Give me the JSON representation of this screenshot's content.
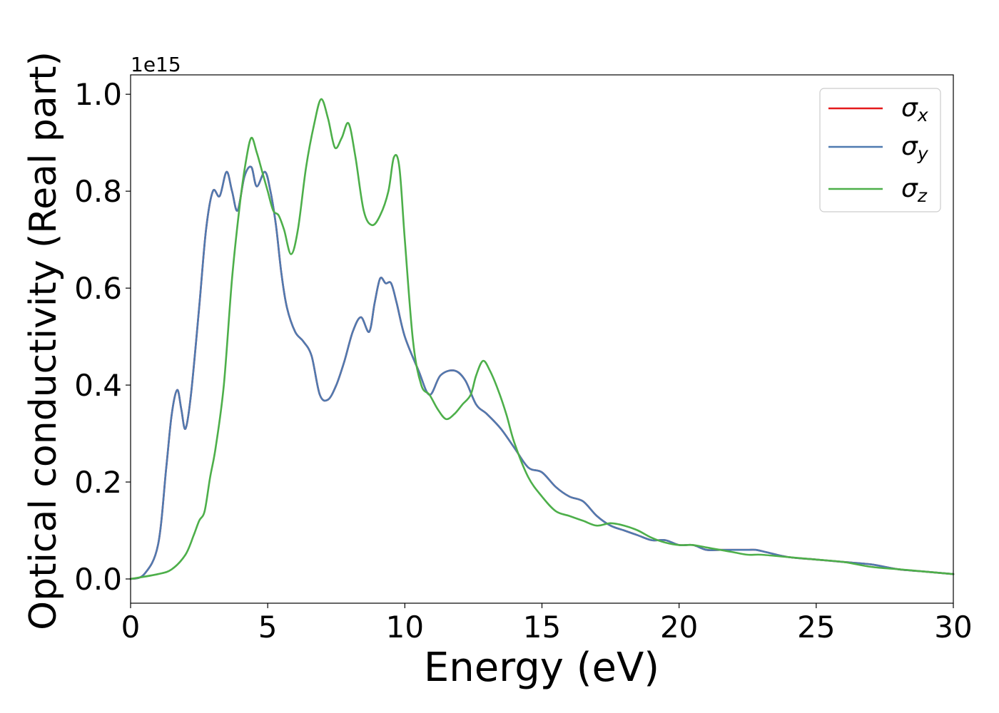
{
  "chart_data": {
    "type": "line",
    "xlabel": "Energy (eV)",
    "ylabel": "Optical conductivity (Real part)",
    "offset_text": "1e15",
    "xlim": [
      0,
      30
    ],
    "ylim": [
      -0.05,
      1.04
    ],
    "x_ticks": [
      0,
      5,
      10,
      15,
      20,
      25,
      30
    ],
    "x_tick_labels": [
      "0",
      "5",
      "10",
      "15",
      "20",
      "25",
      "30"
    ],
    "y_ticks": [
      0.0,
      0.2,
      0.4,
      0.6,
      0.8,
      1.0
    ],
    "y_tick_labels": [
      "0.0",
      "0.2",
      "0.4",
      "0.6",
      "0.8",
      "1.0"
    ],
    "grid": false,
    "legend_position": "top-right",
    "series": [
      {
        "name": "σx",
        "symbol": "σ",
        "subscript": "x",
        "color": "#e41a1c",
        "x": [
          0,
          0.5,
          1.0,
          1.3,
          1.5,
          1.7,
          1.85,
          2.0,
          2.2,
          2.5,
          2.75,
          3.0,
          3.25,
          3.5,
          3.7,
          3.9,
          4.15,
          4.4,
          4.6,
          4.9,
          5.1,
          5.3,
          5.5,
          5.7,
          6.0,
          6.3,
          6.6,
          6.9,
          7.2,
          7.5,
          7.8,
          8.1,
          8.4,
          8.7,
          8.9,
          9.1,
          9.3,
          9.5,
          9.7,
          10.0,
          10.5,
          10.9,
          11.3,
          11.8,
          12.2,
          12.6,
          13.0,
          13.5,
          14.0,
          14.5,
          15.0,
          15.5,
          16.0,
          16.5,
          17.0,
          17.5,
          18.0,
          18.5,
          19.0,
          19.5,
          20.0,
          20.5,
          21.0,
          21.5,
          22.0,
          22.5,
          22.8,
          23.2,
          24.0,
          25.0,
          26.0,
          27.0,
          28.0,
          29.0,
          30.0
        ],
        "values": [
          0.0,
          0.01,
          0.07,
          0.23,
          0.34,
          0.39,
          0.35,
          0.31,
          0.38,
          0.56,
          0.72,
          0.8,
          0.79,
          0.84,
          0.8,
          0.76,
          0.83,
          0.85,
          0.81,
          0.84,
          0.8,
          0.73,
          0.63,
          0.56,
          0.51,
          0.49,
          0.46,
          0.38,
          0.37,
          0.4,
          0.45,
          0.51,
          0.54,
          0.51,
          0.57,
          0.62,
          0.61,
          0.61,
          0.57,
          0.5,
          0.43,
          0.38,
          0.42,
          0.43,
          0.41,
          0.36,
          0.34,
          0.31,
          0.27,
          0.23,
          0.22,
          0.19,
          0.17,
          0.16,
          0.13,
          0.11,
          0.1,
          0.09,
          0.08,
          0.08,
          0.07,
          0.07,
          0.06,
          0.06,
          0.06,
          0.06,
          0.06,
          0.055,
          0.045,
          0.04,
          0.035,
          0.03,
          0.02,
          0.015,
          0.01
        ]
      },
      {
        "name": "σy",
        "symbol": "σ",
        "subscript": "y",
        "color": "#4f7ab0",
        "x": [
          0,
          0.5,
          1.0,
          1.3,
          1.5,
          1.7,
          1.85,
          2.0,
          2.2,
          2.5,
          2.75,
          3.0,
          3.25,
          3.5,
          3.7,
          3.9,
          4.15,
          4.4,
          4.6,
          4.9,
          5.1,
          5.3,
          5.5,
          5.7,
          6.0,
          6.3,
          6.6,
          6.9,
          7.2,
          7.5,
          7.8,
          8.1,
          8.4,
          8.7,
          8.9,
          9.1,
          9.3,
          9.5,
          9.7,
          10.0,
          10.5,
          10.9,
          11.3,
          11.8,
          12.2,
          12.6,
          13.0,
          13.5,
          14.0,
          14.5,
          15.0,
          15.5,
          16.0,
          16.5,
          17.0,
          17.5,
          18.0,
          18.5,
          19.0,
          19.5,
          20.0,
          20.5,
          21.0,
          21.5,
          22.0,
          22.5,
          22.8,
          23.2,
          24.0,
          25.0,
          26.0,
          27.0,
          28.0,
          29.0,
          30.0
        ],
        "values": [
          0.0,
          0.01,
          0.07,
          0.23,
          0.34,
          0.39,
          0.35,
          0.31,
          0.38,
          0.56,
          0.72,
          0.8,
          0.79,
          0.84,
          0.8,
          0.76,
          0.83,
          0.85,
          0.81,
          0.84,
          0.8,
          0.73,
          0.63,
          0.56,
          0.51,
          0.49,
          0.46,
          0.38,
          0.37,
          0.4,
          0.45,
          0.51,
          0.54,
          0.51,
          0.57,
          0.62,
          0.61,
          0.61,
          0.57,
          0.5,
          0.43,
          0.38,
          0.42,
          0.43,
          0.41,
          0.36,
          0.34,
          0.31,
          0.27,
          0.23,
          0.22,
          0.19,
          0.17,
          0.16,
          0.13,
          0.11,
          0.1,
          0.09,
          0.08,
          0.08,
          0.07,
          0.07,
          0.06,
          0.06,
          0.06,
          0.06,
          0.06,
          0.055,
          0.045,
          0.04,
          0.035,
          0.03,
          0.02,
          0.015,
          0.01
        ]
      },
      {
        "name": "σz",
        "symbol": "σ",
        "subscript": "z",
        "color": "#4daf4a",
        "x": [
          0,
          1.0,
          1.5,
          2.0,
          2.3,
          2.5,
          2.7,
          2.9,
          3.1,
          3.4,
          3.7,
          4.0,
          4.2,
          4.4,
          4.6,
          4.8,
          5.0,
          5.2,
          5.4,
          5.6,
          5.85,
          6.1,
          6.4,
          6.7,
          6.95,
          7.2,
          7.45,
          7.7,
          7.95,
          8.2,
          8.5,
          8.8,
          9.1,
          9.4,
          9.6,
          9.8,
          10.0,
          10.3,
          10.6,
          10.9,
          11.2,
          11.5,
          11.8,
          12.1,
          12.4,
          12.6,
          12.85,
          13.1,
          13.4,
          13.7,
          14.0,
          14.5,
          15.0,
          15.5,
          16.0,
          16.5,
          17.0,
          17.5,
          18.0,
          18.5,
          19.0,
          19.5,
          20.0,
          20.5,
          21.0,
          21.5,
          22.0,
          22.5,
          23.0,
          24.0,
          25.0,
          26.0,
          27.0,
          28.0,
          29.0,
          30.0
        ],
        "values": [
          0.0,
          0.01,
          0.02,
          0.05,
          0.09,
          0.12,
          0.14,
          0.21,
          0.27,
          0.4,
          0.62,
          0.78,
          0.86,
          0.91,
          0.88,
          0.84,
          0.8,
          0.76,
          0.75,
          0.72,
          0.67,
          0.72,
          0.85,
          0.94,
          0.99,
          0.95,
          0.89,
          0.91,
          0.94,
          0.87,
          0.76,
          0.73,
          0.75,
          0.8,
          0.87,
          0.85,
          0.7,
          0.49,
          0.4,
          0.38,
          0.35,
          0.33,
          0.34,
          0.36,
          0.38,
          0.42,
          0.45,
          0.43,
          0.39,
          0.34,
          0.28,
          0.21,
          0.17,
          0.14,
          0.13,
          0.12,
          0.11,
          0.115,
          0.11,
          0.1,
          0.085,
          0.075,
          0.07,
          0.07,
          0.065,
          0.06,
          0.055,
          0.05,
          0.05,
          0.045,
          0.04,
          0.035,
          0.025,
          0.02,
          0.015,
          0.01
        ]
      }
    ]
  }
}
